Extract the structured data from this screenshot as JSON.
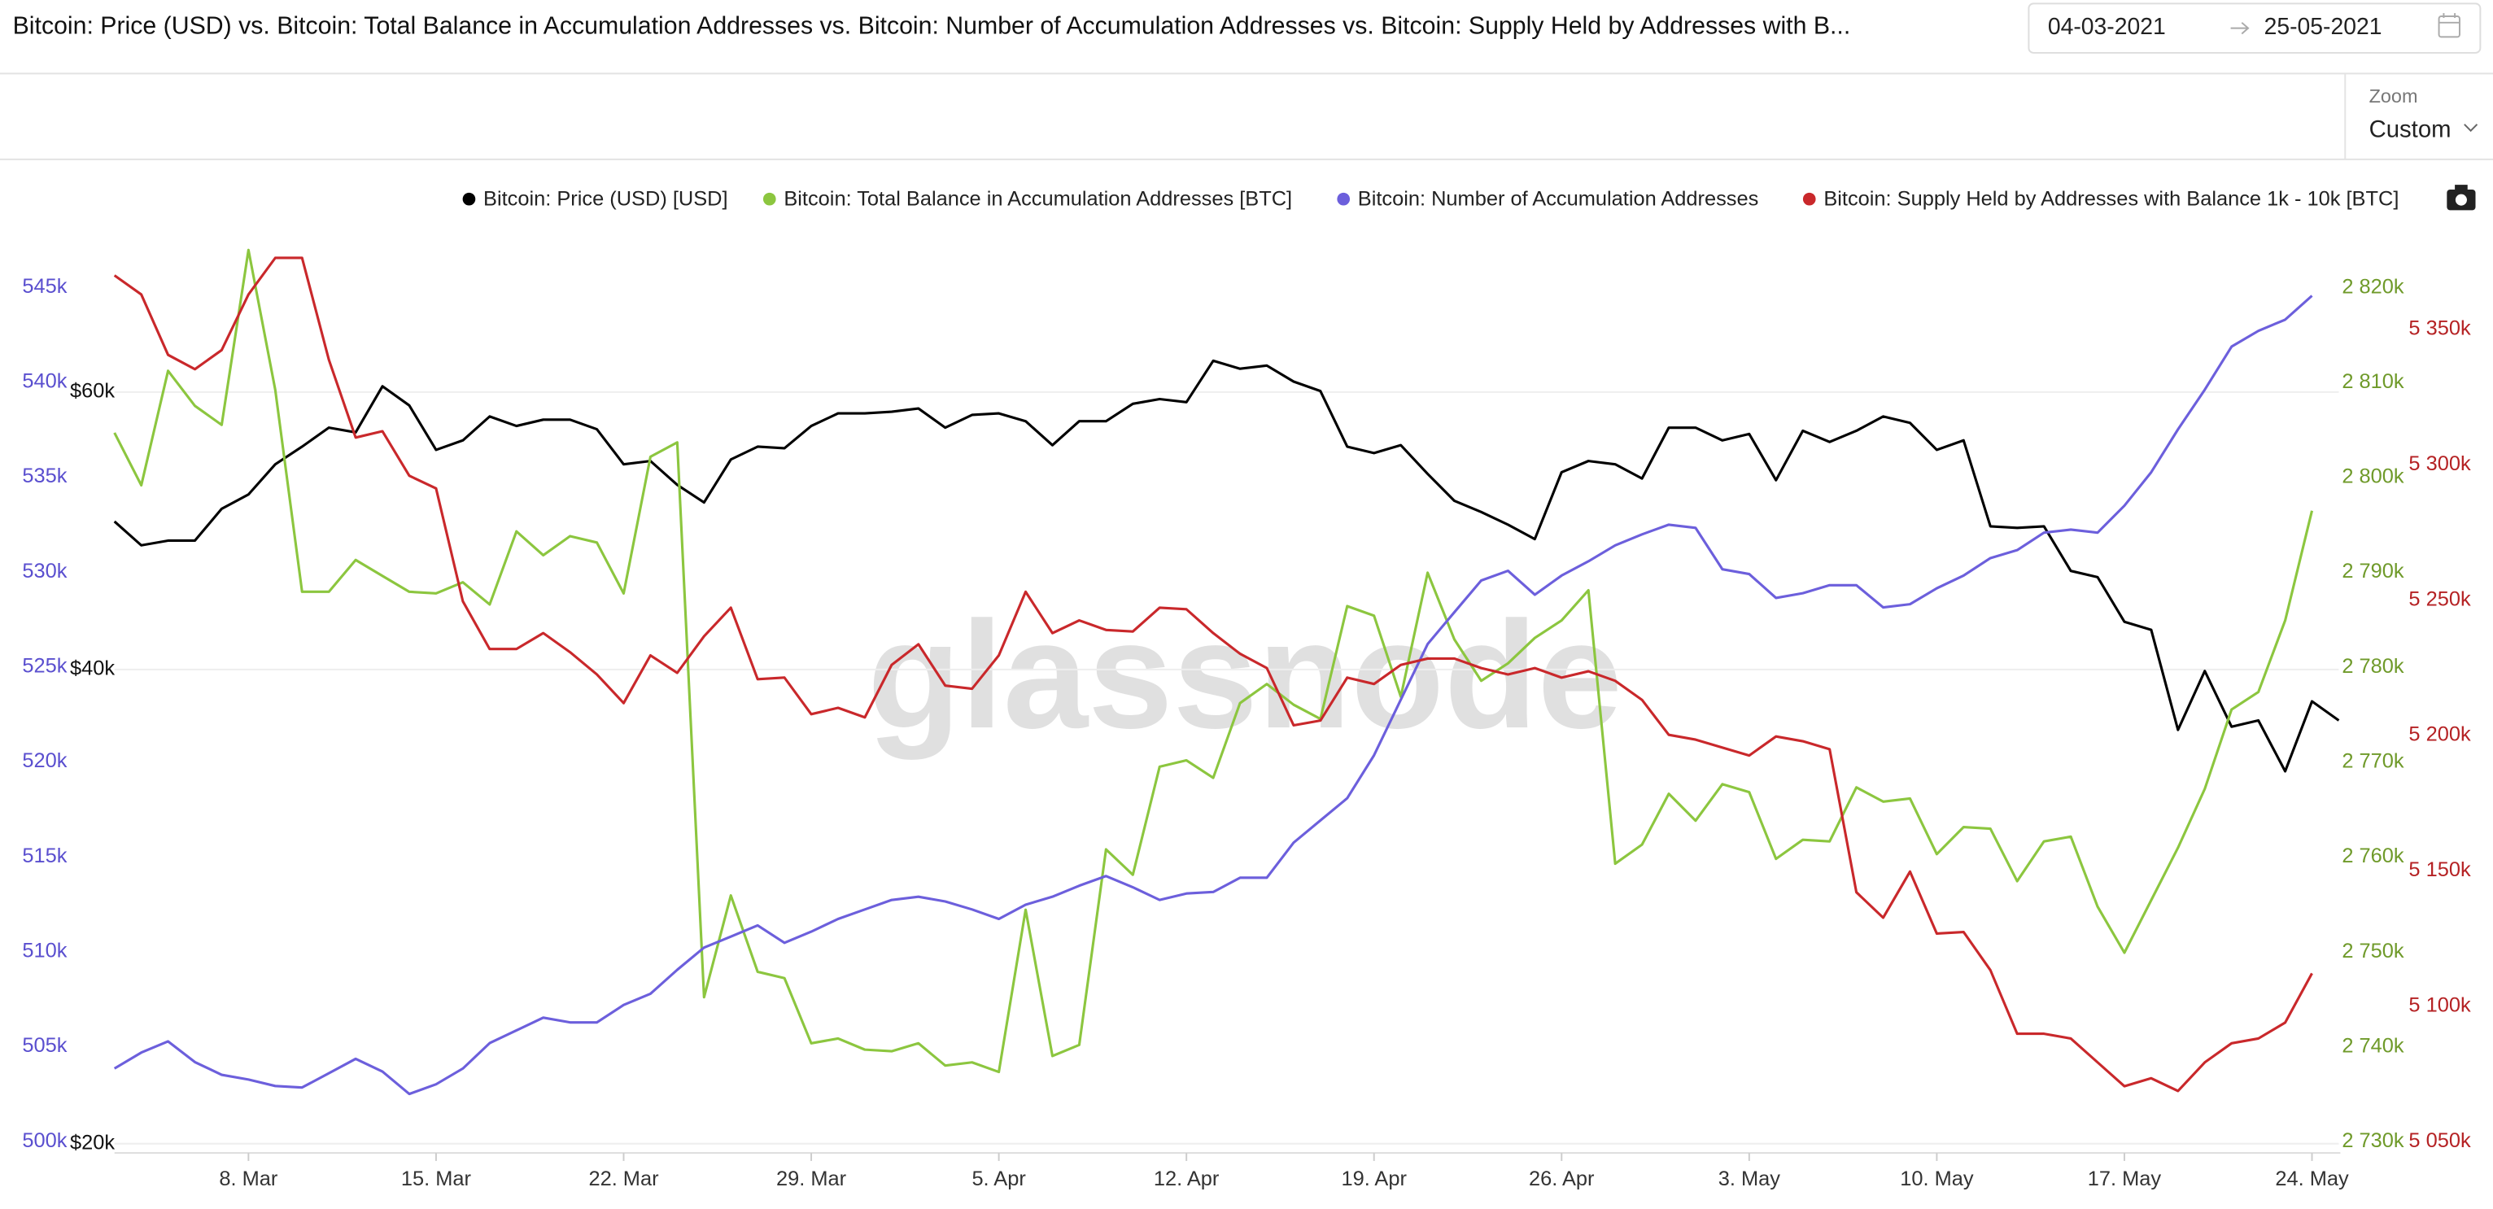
{
  "header": {
    "date_from": "04-03-2021",
    "date_to": "25-05-2021",
    "zoom_label": "Zoom",
    "zoom_value": "Custom"
  },
  "watermark": "glassnode",
  "chart_data": {
    "type": "line",
    "title": "Bitcoin: Price (USD) vs. Bitcoin: Total Balance in Accumulation Addresses vs. Bitcoin: Number of Accumulation Addresses vs. Bitcoin: Supply Held by Addresses with B...",
    "x": [
      "2021-03-03",
      "2021-03-04",
      "2021-03-05",
      "2021-03-06",
      "2021-03-07",
      "2021-03-08",
      "2021-03-09",
      "2021-03-10",
      "2021-03-11",
      "2021-03-12",
      "2021-03-13",
      "2021-03-14",
      "2021-03-15",
      "2021-03-16",
      "2021-03-17",
      "2021-03-18",
      "2021-03-19",
      "2021-03-20",
      "2021-03-21",
      "2021-03-22",
      "2021-03-23",
      "2021-03-24",
      "2021-03-25",
      "2021-03-26",
      "2021-03-27",
      "2021-03-28",
      "2021-03-29",
      "2021-03-30",
      "2021-03-31",
      "2021-04-01",
      "2021-04-02",
      "2021-04-03",
      "2021-04-04",
      "2021-04-05",
      "2021-04-06",
      "2021-04-07",
      "2021-04-08",
      "2021-04-09",
      "2021-04-10",
      "2021-04-11",
      "2021-04-12",
      "2021-04-13",
      "2021-04-14",
      "2021-04-15",
      "2021-04-16",
      "2021-04-17",
      "2021-04-18",
      "2021-04-19",
      "2021-04-20",
      "2021-04-21",
      "2021-04-22",
      "2021-04-23",
      "2021-04-24",
      "2021-04-25",
      "2021-04-26",
      "2021-04-27",
      "2021-04-28",
      "2021-04-29",
      "2021-04-30",
      "2021-05-01",
      "2021-05-02",
      "2021-05-03",
      "2021-05-04",
      "2021-05-05",
      "2021-05-06",
      "2021-05-07",
      "2021-05-08",
      "2021-05-09",
      "2021-05-10",
      "2021-05-11",
      "2021-05-12",
      "2021-05-13",
      "2021-05-14",
      "2021-05-15",
      "2021-05-16",
      "2021-05-17",
      "2021-05-18",
      "2021-05-19",
      "2021-05-20",
      "2021-05-21",
      "2021-05-22",
      "2021-05-23",
      "2021-05-24",
      "2021-05-25"
    ],
    "xticks": [
      {
        "value": "2021-03-08",
        "label": "8. Mar"
      },
      {
        "value": "2021-03-15",
        "label": "15. Mar"
      },
      {
        "value": "2021-03-22",
        "label": "22. Mar"
      },
      {
        "value": "2021-03-29",
        "label": "29. Mar"
      },
      {
        "value": "2021-04-05",
        "label": "5. Apr"
      },
      {
        "value": "2021-04-12",
        "label": "12. Apr"
      },
      {
        "value": "2021-04-19",
        "label": "19. Apr"
      },
      {
        "value": "2021-04-26",
        "label": "26. Apr"
      },
      {
        "value": "2021-05-03",
        "label": "3. May"
      },
      {
        "value": "2021-05-10",
        "label": "10. May"
      },
      {
        "value": "2021-05-17",
        "label": "17. May"
      },
      {
        "value": "2021-05-24",
        "label": "24. May"
      }
    ],
    "ylim": [
      499400,
      549400
    ],
    "yticks": [
      {
        "value": 500000,
        "label": "500k"
      },
      {
        "value": 505000,
        "label": "505k"
      },
      {
        "value": 510000,
        "label": "510k"
      },
      {
        "value": 515000,
        "label": "515k"
      },
      {
        "value": 520000,
        "label": "520k"
      },
      {
        "value": 525000,
        "label": "525k"
      },
      {
        "value": 530000,
        "label": "530k"
      },
      {
        "value": 535000,
        "label": "535k"
      },
      {
        "value": 540000,
        "label": "540k"
      },
      {
        "value": 545000,
        "label": "545k"
      }
    ],
    "y2lim": [
      19730,
      79000
    ],
    "y2scale": "log",
    "y2ticks": [
      {
        "value": 20000,
        "label": "$20k"
      },
      {
        "value": 40000,
        "label": "$40k"
      },
      {
        "value": 60000,
        "label": "$60k"
      }
    ],
    "y3lim": [
      2728830,
      2828830
    ],
    "y3ticks": [
      {
        "value": 2730000,
        "label": "2 730k"
      },
      {
        "value": 2740000,
        "label": "2 740k"
      },
      {
        "value": 2750000,
        "label": "2 750k"
      },
      {
        "value": 2760000,
        "label": "2 760k"
      },
      {
        "value": 2770000,
        "label": "2 770k"
      },
      {
        "value": 2780000,
        "label": "2 780k"
      },
      {
        "value": 2790000,
        "label": "2 790k"
      },
      {
        "value": 2800000,
        "label": "2 800k"
      },
      {
        "value": 2810000,
        "label": "2 810k"
      },
      {
        "value": 2820000,
        "label": "2 820k"
      }
    ],
    "y4lim": [
      5045890,
      5396270
    ],
    "y4ticks": [
      {
        "value": 5050000,
        "label": "5 050k"
      },
      {
        "value": 5100000,
        "label": "5 100k"
      },
      {
        "value": 5150000,
        "label": "5 150k"
      },
      {
        "value": 5200000,
        "label": "5 200k"
      },
      {
        "value": 5250000,
        "label": "5 250k"
      },
      {
        "value": 5300000,
        "label": "5 300k"
      },
      {
        "value": 5350000,
        "label": "5 350k"
      }
    ],
    "grid": true,
    "series": [
      {
        "name": "Bitcoin: Price (USD) [USD]",
        "color": "#000000",
        "axis": "y2",
        "values": [
          49660,
          47960,
          48290,
          48290,
          50590,
          51660,
          53990,
          55400,
          56960,
          56570,
          60510,
          58840,
          55140,
          55910,
          57900,
          57100,
          57630,
          57630,
          56830,
          53990,
          54250,
          52390,
          51060,
          54370,
          55400,
          55270,
          57100,
          58160,
          58160,
          58300,
          58580,
          56960,
          58030,
          58160,
          57500,
          55520,
          57500,
          57500,
          58980,
          59390,
          59120,
          62810,
          62080,
          62370,
          60930,
          60090,
          55400,
          54880,
          55520,
          53240,
          51180,
          50350,
          49430,
          48400,
          53370,
          54250,
          53990,
          52880,
          56960,
          56960,
          55910,
          56440,
          52750,
          56700,
          55780,
          56700,
          57900,
          57360,
          55140,
          55910,
          49310,
          49200,
          49310,
          46200,
          45780,
          42890,
          42390,
          36620,
          39910,
          36790,
          37130,
          34470,
          38180,
          37130
        ]
      },
      {
        "name": "Bitcoin: Total Balance in Accumulation Addresses [BTC]",
        "color": "#8cc63f",
        "axis": "y3",
        "values": [
          2804710,
          2799180,
          2811240,
          2807550,
          2805540,
          2823970,
          2809230,
          2787960,
          2787960,
          2791310,
          2789630,
          2787960,
          2787790,
          2788960,
          2786620,
          2794320,
          2791810,
          2793820,
          2793150,
          2787790,
          2802190,
          2803700,
          2745240,
          2755960,
          2747920,
          2747250,
          2740390,
          2740890,
          2739720,
          2739550,
          2740390,
          2738040,
          2738380,
          2737370,
          2754460,
          2739050,
          2740220,
          2760820,
          2758140,
          2769530,
          2770200,
          2768360,
          2776230,
          2778240,
          2776060,
          2774560,
          2786450,
          2785440,
          2776900,
          2789970,
          2782930,
          2778580,
          2780420,
          2783100,
          2784940,
          2788120,
          2759310,
          2761320,
          2766680,
          2763840,
          2767690,
          2766850,
          2759820,
          2761830,
          2761660,
          2767350,
          2765850,
          2766180,
          2760320,
          2763170,
          2763000,
          2757470,
          2761660,
          2762160,
          2754790,
          2749930,
          2755460,
          2760990,
          2767190,
          2775560,
          2777400,
          2784940,
          2796500,
          null
        ]
      },
      {
        "name": "Bitcoin: Number of Accumulation Addresses",
        "color": "#6c5fdc",
        "axis": "y",
        "values": [
          503850,
          504690,
          505280,
          504190,
          503520,
          503270,
          502930,
          502850,
          503600,
          504360,
          503690,
          502510,
          503020,
          503850,
          505190,
          505860,
          506530,
          506280,
          506280,
          507200,
          507790,
          509050,
          510220,
          510800,
          511390,
          510470,
          511060,
          511730,
          512230,
          512730,
          512900,
          512650,
          512230,
          511730,
          512480,
          512900,
          513480,
          513990,
          513400,
          512730,
          513070,
          513150,
          513900,
          513900,
          515750,
          516920,
          518090,
          520350,
          523280,
          526210,
          527890,
          529560,
          530070,
          528810,
          529820,
          530570,
          531410,
          531990,
          532500,
          532330,
          530150,
          529900,
          528640,
          528890,
          529310,
          529310,
          528140,
          528310,
          529150,
          529820,
          530740,
          531160,
          532080,
          532240,
          532080,
          533500,
          535260,
          537520,
          539610,
          541880,
          542710,
          543300,
          544560,
          null
        ]
      },
      {
        "name": "Bitcoin: Supply Held by Addresses with Balance 1k - 10k [BTC]",
        "color": "#c9282b",
        "axis": "y4",
        "values": [
          5369860,
          5362820,
          5340520,
          5335230,
          5342280,
          5362820,
          5376320,
          5376320,
          5338750,
          5310000,
          5312340,
          5295910,
          5291220,
          5249550,
          5231940,
          5231940,
          5237810,
          5230770,
          5222550,
          5211980,
          5229590,
          5223140,
          5236630,
          5247200,
          5220790,
          5221380,
          5207880,
          5210220,
          5206700,
          5226070,
          5233700,
          5218440,
          5217270,
          5229590,
          5253070,
          5237810,
          5242500,
          5238980,
          5238400,
          5247200,
          5246610,
          5237810,
          5230180,
          5224900,
          5203770,
          5205530,
          5221380,
          5219030,
          5226070,
          5228420,
          5228420,
          5224900,
          5222550,
          5224900,
          5221380,
          5223720,
          5220200,
          5213160,
          5200250,
          5198490,
          5195550,
          5192620,
          5199660,
          5197900,
          5194960,
          5142140,
          5132750,
          5149770,
          5126880,
          5127470,
          5113390,
          5089910,
          5089910,
          5088150,
          5079350,
          5070540,
          5073480,
          5068780,
          5079350,
          5086390,
          5088150,
          5094020,
          5112210,
          null
        ]
      }
    ]
  }
}
